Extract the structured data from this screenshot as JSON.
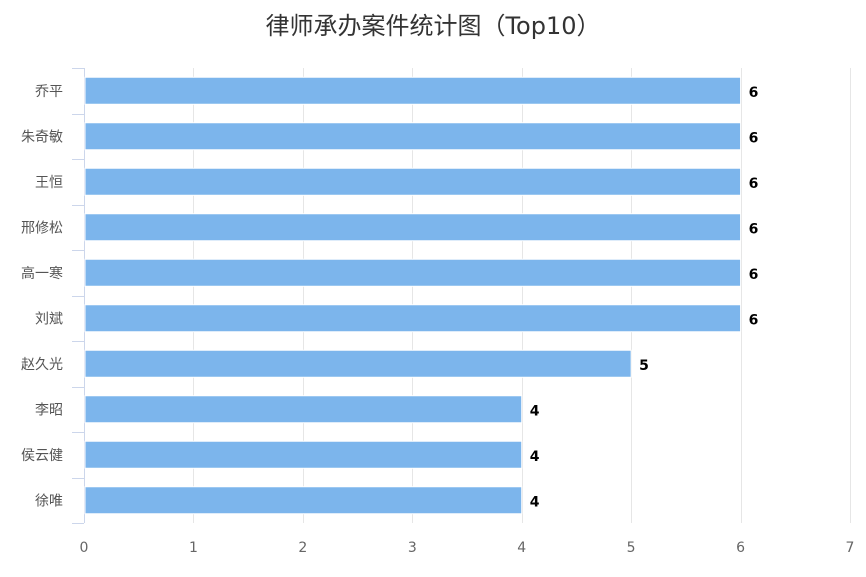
{
  "chart_data": {
    "type": "bar",
    "orientation": "horizontal",
    "title": "律师承办案件统计图（Top10）",
    "categories": [
      "乔平",
      "朱奇敏",
      "王恒",
      "邢修松",
      "高一寒",
      "刘斌",
      "赵久光",
      "李昭",
      "侯云健",
      "徐唯"
    ],
    "values": [
      6,
      6,
      6,
      6,
      6,
      6,
      5,
      4,
      4,
      4
    ],
    "xlim": [
      0,
      7
    ],
    "x_ticks": [
      "0",
      "1",
      "2",
      "3",
      "4",
      "5",
      "6",
      "7"
    ],
    "grid": true,
    "legend": "none",
    "bar_color": "#7cb5ec"
  }
}
